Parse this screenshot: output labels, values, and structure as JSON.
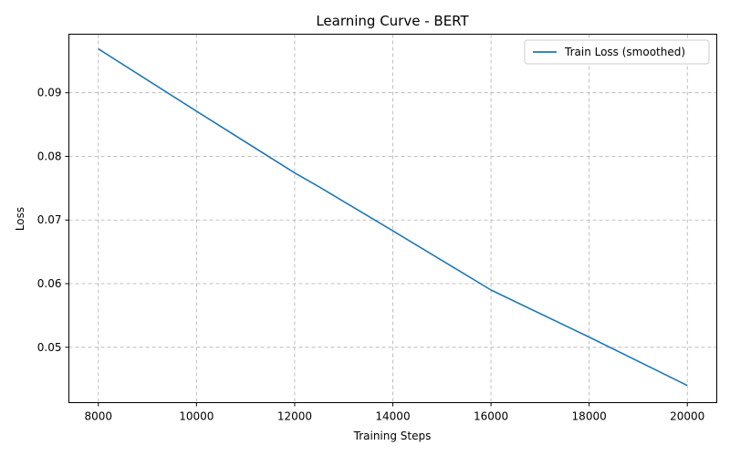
{
  "chart_data": {
    "type": "line",
    "title": "Learning Curve - BERT",
    "xlabel": "Training Steps",
    "ylabel": "Loss",
    "xlim": [
      7400,
      20600
    ],
    "ylim": [
      0.0413,
      0.0992
    ],
    "xticks": [
      8000,
      10000,
      12000,
      14000,
      16000,
      18000,
      20000
    ],
    "yticks": [
      0.05,
      0.06,
      0.07,
      0.08,
      0.09
    ],
    "xtick_labels": [
      "8000",
      "10000",
      "12000",
      "14000",
      "16000",
      "18000",
      "20000"
    ],
    "ytick_labels": [
      "0.05",
      "0.06",
      "0.07",
      "0.08",
      "0.09"
    ],
    "grid": true,
    "legend_position": "upper-right",
    "series": [
      {
        "name": "Train Loss (smoothed)",
        "color": "#1f77b4",
        "x": [
          8000,
          10000,
          12000,
          12500,
          14000,
          16000,
          18000,
          20000
        ],
        "y": [
          0.0969,
          0.0871,
          0.0774,
          0.0752,
          0.0683,
          0.059,
          0.0516,
          0.044
        ]
      }
    ]
  }
}
